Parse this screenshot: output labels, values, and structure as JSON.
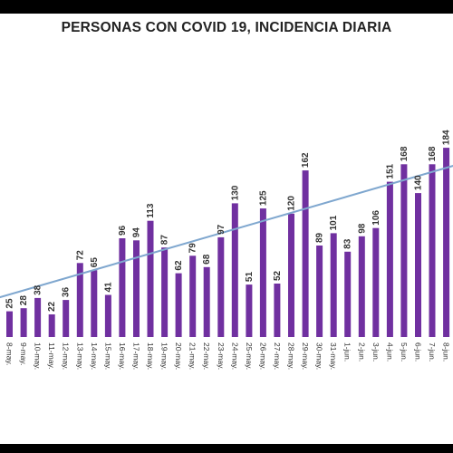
{
  "chart_data": {
    "type": "bar",
    "title": "PERSONAS CON COVID 19, INCIDENCIA DIARIA",
    "xlabel": "",
    "ylabel": "",
    "categories": [
      "8-may.",
      "9-may.",
      "10-may.",
      "11-may.",
      "12-may.",
      "13-may.",
      "14-may.",
      "15-may.",
      "16-may.",
      "17-may.",
      "18-may.",
      "19-may.",
      "20-may.",
      "21-may.",
      "22-may.",
      "23-may.",
      "24-may.",
      "25-may.",
      "26-may.",
      "27-may.",
      "28-may.",
      "29-may.",
      "30-may.",
      "31-may.",
      "1-jun.",
      "2-jun.",
      "3-jun.",
      "4-jun.",
      "5-jun.",
      "6-jun.",
      "7-jun.",
      "8-jun."
    ],
    "values": [
      25,
      28,
      38,
      22,
      36,
      72,
      65,
      41,
      96,
      94,
      113,
      87,
      62,
      79,
      68,
      97,
      130,
      51,
      125,
      52,
      120,
      162,
      89,
      101,
      83,
      98,
      106,
      151,
      168,
      140,
      168,
      184
    ],
    "labels": [
      "25",
      "28",
      "38",
      "22",
      "36",
      "72",
      "65",
      "41",
      "96",
      "94",
      "113",
      "87",
      "62",
      "79",
      "68",
      "97",
      "130",
      "51",
      "125",
      "52",
      "120",
      "162",
      "89",
      "101",
      "83",
      "98",
      "106",
      "151",
      "168",
      "140",
      "168",
      "184"
    ],
    "trendline": {
      "start": 38,
      "end": 168
    },
    "ylim": [
      0,
      185
    ],
    "grid": false,
    "legend": "none",
    "colors": {
      "bar": "#7030a0",
      "trend": "#7fa7cf"
    }
  }
}
